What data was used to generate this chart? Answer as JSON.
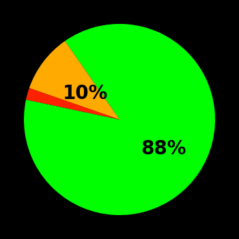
{
  "slices": [
    88,
    10,
    2
  ],
  "colors": [
    "#00ff00",
    "#ffaa00",
    "#ff2200"
  ],
  "labels": [
    "88%",
    "10%",
    ""
  ],
  "background_color": "#000000",
  "label_fontsize": 20,
  "label_color": "#000000",
  "startangle": 168,
  "figsize": [
    3.5,
    3.5
  ],
  "dpi": 100,
  "label_radii": [
    0.55,
    0.45,
    0
  ]
}
